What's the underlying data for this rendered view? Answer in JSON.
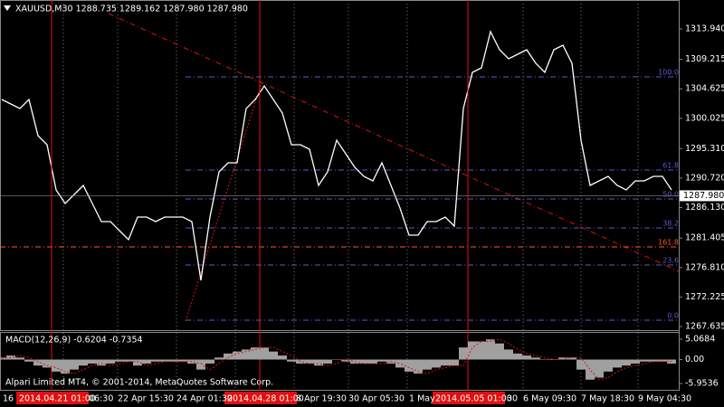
{
  "header": "XAUUSD,M30  1288.735 1289.162 1287.980 1287.980",
  "copyright": "Alpari Limited MT4, © 2001-2014, MetaQuotes Software Corp.",
  "chart_data": [
    {
      "type": "line",
      "color": "#ffffff",
      "values": [
        1302.96,
        1302.25,
        1301.55,
        1302.96,
        1297.33,
        1295.92,
        1288.88,
        1286.77,
        1288.18,
        1289.59,
        1286.77,
        1283.96,
        1283.96,
        1282.55,
        1281.14,
        1284.66,
        1284.66,
        1283.96,
        1284.66,
        1284.66,
        1284.66,
        1283.96,
        1274.81,
        1284.66,
        1291.7,
        1293.1,
        1293.1,
        1301.55,
        1302.96,
        1305.07,
        1302.96,
        1300.85,
        1295.92,
        1295.92,
        1295.22,
        1289.59,
        1291.7,
        1296.62,
        1294.51,
        1292.4,
        1290.99,
        1290.29,
        1293.1,
        1289.59,
        1286.07,
        1281.85,
        1281.85,
        1283.96,
        1283.96,
        1284.66,
        1283.25,
        1301.55,
        1307.18,
        1307.88,
        1313.51,
        1310.7,
        1309.29,
        1310.0,
        1310.7,
        1308.59,
        1307.18,
        1310.7,
        1311.4,
        1308.59,
        1296.62,
        1289.59,
        1290.29,
        1290.99,
        1289.59,
        1288.88,
        1290.29,
        1290.29,
        1290.99,
        1290.99,
        1288.88
      ],
      "ylim": [
        1267.07,
        1318.44
      ],
      "yticks": [
        {
          "value": 1313.94,
          "label": "1313.940"
        },
        1309.215,
        1304.625,
        1300.025,
        {
          "value": 1295.31,
          "label": "1295.310"
        },
        {
          "value": 1290.72,
          "label": "1290.720"
        },
        {
          "value": 1286.13,
          "label": "1286.130"
        },
        1281.405,
        {
          "value": 1276.81,
          "label": "1276.810"
        },
        1272.225,
        1267.635
      ],
      "current_price": {
        "value": 1287.98,
        "label": "1287.980"
      },
      "fib_color": "#5a5ac8",
      "fib_levels": [
        {
          "value": 1306.48,
          "label": "100.0"
        },
        {
          "value": 1291.98,
          "label": "61.8"
        },
        {
          "value": 1287.48,
          "label": "50.0"
        },
        {
          "value": 1282.97,
          "label": "38.2"
        },
        {
          "value": 1277.2,
          "label": "23.6"
        },
        {
          "value": 1268.62,
          "label": "0.0"
        }
      ],
      "extension_level": {
        "value": 1280.02,
        "label": "161.8",
        "color": "#ff5a1e"
      },
      "x_labels": [
        "16",
        "06:30",
        "22 Apr 15:30",
        "24 Apr 01:30",
        "8 Apr 19:30",
        "30 Apr 05:30",
        "1 May",
        "30",
        "6 May 09:30",
        "7 May 18:30",
        "9 May 04:30"
      ],
      "vline_labels": [
        "2014.04.21 01:00",
        "2014.04.28 01:00",
        "2014.05.05 01:00"
      ],
      "vline_color": "#e01010"
    },
    {
      "type": "bar",
      "title": "MACD(12,26,9) -0.6204 -0.7354",
      "color": "#a0a0a0",
      "values": [
        0.5,
        1.0,
        0.5,
        -0.5,
        -1.5,
        -2.0,
        -3.0,
        -3.5,
        -2.5,
        -1.5,
        -1.0,
        -1.5,
        -1.0,
        -0.5,
        -0.5,
        -1.5,
        -1.0,
        -0.5,
        -0.5,
        -0.5,
        -0.5,
        -1.0,
        -2.5,
        -1.0,
        0.5,
        1.5,
        2.0,
        2.5,
        3.0,
        3.0,
        2.0,
        1.0,
        -0.5,
        -1.0,
        -1.0,
        -1.5,
        -1.0,
        0.0,
        -0.5,
        -1.0,
        -1.0,
        -1.0,
        -0.5,
        -1.0,
        -2.0,
        -3.0,
        -3.5,
        -2.5,
        -2.0,
        -1.5,
        -1.5,
        3.0,
        4.5,
        4.5,
        5.0,
        4.0,
        2.5,
        1.5,
        1.0,
        0.5,
        0.0,
        0.0,
        0.5,
        0.5,
        -2.5,
        -5.0,
        -4.5,
        -3.0,
        -2.0,
        -1.5,
        -1.0,
        -0.5,
        -0.5,
        -0.5,
        -1.0
      ],
      "signal_color": "#e01010",
      "signal_values": [
        0.3,
        0.5,
        1.0,
        0.5,
        -0.5,
        -1.5,
        -2.0,
        -3.0,
        -3.5,
        -2.5,
        -1.5,
        -1.0,
        -1.5,
        -1.0,
        -0.5,
        -0.5,
        -1.5,
        -1.0,
        -0.5,
        -0.5,
        -0.5,
        -0.5,
        -1.0,
        -2.5,
        -1.0,
        0.5,
        1.5,
        2.0,
        2.5,
        3.0,
        3.0,
        2.0,
        1.0,
        -0.5,
        -1.0,
        -1.0,
        -1.5,
        -1.0,
        0.0,
        -0.5,
        -1.0,
        -1.0,
        -1.0,
        -0.5,
        -1.0,
        -2.0,
        -3.0,
        -3.5,
        -2.5,
        -2.0,
        -1.5,
        -1.5,
        3.0,
        4.5,
        4.5,
        5.0,
        4.0,
        2.5,
        1.5,
        1.0,
        0.5,
        0.0,
        0.0,
        0.5,
        0.5,
        -2.5,
        -5.0,
        -4.5,
        -3.0,
        -2.0,
        -1.5,
        -1.0,
        -0.5,
        -0.5,
        -0.5
      ],
      "ylim": [
        -7.75,
        6.64
      ],
      "yticks": [
        5.0684,
        {
          "value": 0,
          "label": "0.00"
        },
        -5.9536
      ]
    }
  ]
}
